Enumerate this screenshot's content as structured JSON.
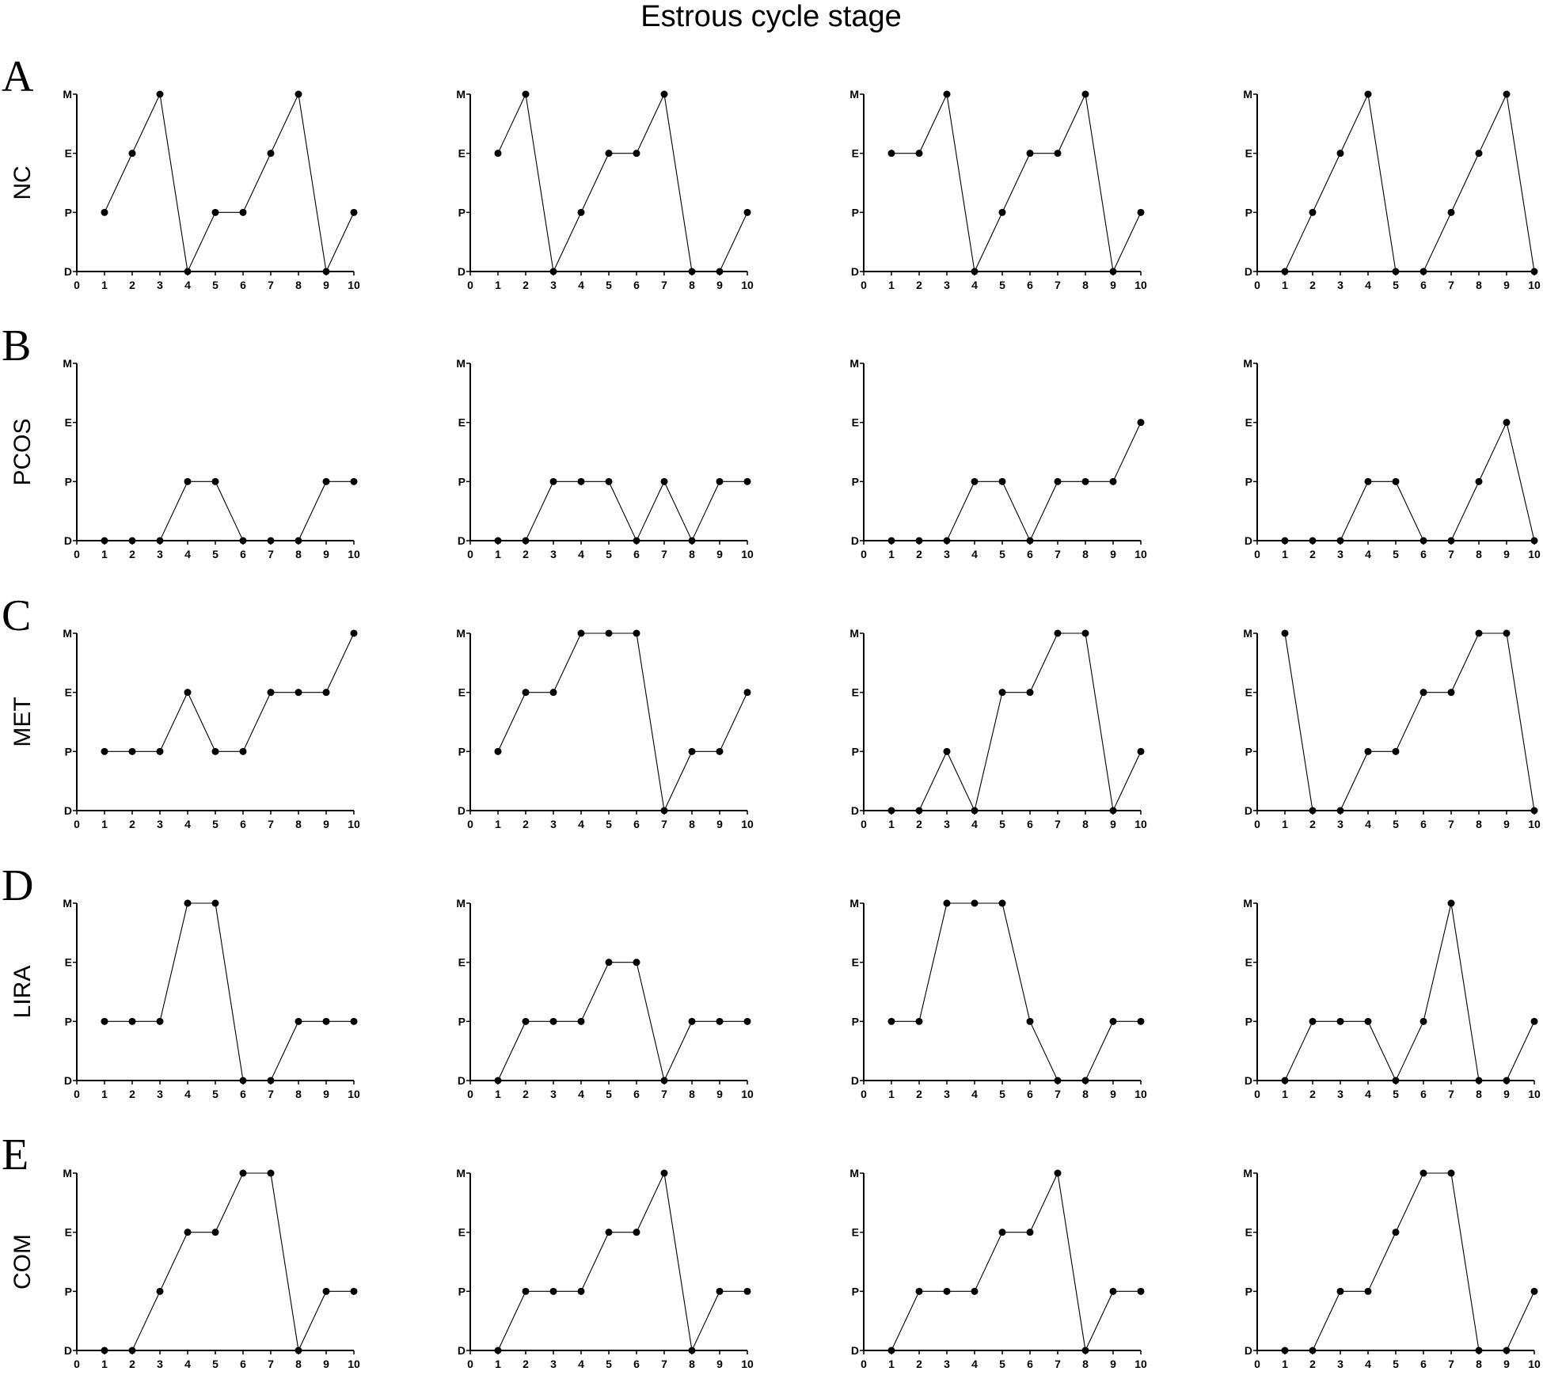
{
  "title": "Estrous cycle stage",
  "chart_data": {
    "type": "line",
    "x": [
      1,
      2,
      3,
      4,
      5,
      6,
      7,
      8,
      9,
      10
    ],
    "x_ticks": [
      "0",
      "1",
      "2",
      "3",
      "4",
      "5",
      "6",
      "7",
      "8",
      "9",
      "10"
    ],
    "xlim": [
      0,
      10
    ],
    "y_ticks": [
      "D",
      "P",
      "E",
      "M"
    ],
    "ylim": [
      0,
      3
    ],
    "y_encoding": {
      "D": 0,
      "P": 1,
      "E": 2,
      "M": 3
    },
    "grid": false,
    "marker": "circle",
    "rows": [
      {
        "panel": "A",
        "group": "NC",
        "series": [
          [
            1,
            2,
            3,
            0,
            1,
            1,
            2,
            3,
            0,
            1
          ],
          [
            2,
            3,
            0,
            1,
            2,
            2,
            3,
            0,
            0,
            1
          ],
          [
            2,
            2,
            3,
            0,
            1,
            2,
            2,
            3,
            0,
            1
          ],
          [
            0,
            1,
            2,
            3,
            0,
            0,
            1,
            2,
            3,
            0
          ]
        ]
      },
      {
        "panel": "B",
        "group": "PCOS",
        "series": [
          [
            0,
            0,
            0,
            1,
            1,
            0,
            0,
            0,
            1,
            1
          ],
          [
            0,
            0,
            1,
            1,
            1,
            0,
            1,
            0,
            1,
            1
          ],
          [
            0,
            0,
            0,
            1,
            1,
            0,
            1,
            1,
            1,
            2
          ],
          [
            0,
            0,
            0,
            1,
            1,
            0,
            0,
            1,
            2,
            0
          ]
        ]
      },
      {
        "panel": "C",
        "group": "MET",
        "series": [
          [
            1,
            1,
            1,
            2,
            1,
            1,
            2,
            2,
            2,
            3
          ],
          [
            1,
            2,
            2,
            3,
            3,
            3,
            0,
            1,
            1,
            2
          ],
          [
            0,
            0,
            1,
            0,
            2,
            2,
            3,
            3,
            0,
            1
          ],
          [
            3,
            0,
            0,
            1,
            1,
            2,
            2,
            3,
            3,
            0
          ]
        ]
      },
      {
        "panel": "D",
        "group": "LIRA",
        "series": [
          [
            1,
            1,
            1,
            3,
            3,
            0,
            0,
            1,
            1,
            1
          ],
          [
            0,
            1,
            1,
            1,
            2,
            2,
            0,
            1,
            1,
            1
          ],
          [
            1,
            1,
            3,
            3,
            3,
            1,
            0,
            0,
            1,
            1
          ],
          [
            0,
            1,
            1,
            1,
            0,
            1,
            3,
            0,
            0,
            1
          ]
        ]
      },
      {
        "panel": "E",
        "group": "COM",
        "series": [
          [
            0,
            0,
            1,
            2,
            2,
            3,
            3,
            0,
            1,
            1
          ],
          [
            0,
            1,
            1,
            1,
            2,
            2,
            3,
            0,
            1,
            1
          ],
          [
            0,
            1,
            1,
            1,
            2,
            2,
            3,
            0,
            1,
            1
          ],
          [
            0,
            0,
            1,
            1,
            2,
            3,
            3,
            0,
            0,
            1
          ]
        ]
      }
    ]
  }
}
